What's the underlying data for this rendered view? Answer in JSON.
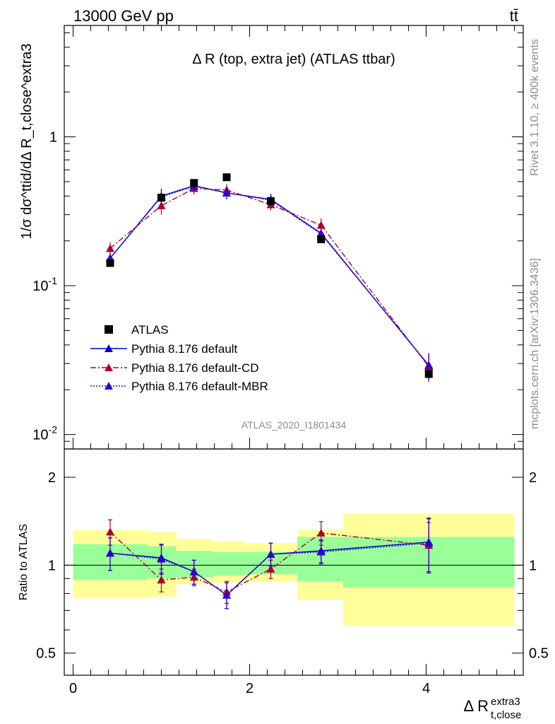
{
  "header": {
    "energy_label": "13000 GeV pp",
    "process_label": "tt̄"
  },
  "side_labels": {
    "rivet": "Rivet 3.1.10, ≥ 400k events",
    "mcplots": "mcplots.cern.ch [arXiv:1306.3436]"
  },
  "chart_data": {
    "type": "line",
    "title": "Δ R (top, extra jet) (ATLAS ttbar)",
    "analysis_id": "ATLAS_2020_I1801434",
    "xlabel": "Δ R",
    "xlabel_sup": "extra3",
    "xlabel_sub": "t,close",
    "ylabel_top": "1/σ dσ^ttid/dΔ R_t,close^extra3",
    "ylabel_bottom": "Ratio to ATLAS",
    "xlim": [
      -0.1,
      5.1
    ],
    "ylim_top": [
      0.008,
      5.6
    ],
    "yscale_top": "log",
    "ylim_bottom": [
      0.42,
      2.5
    ],
    "yscale_bottom": "log",
    "x_ticks": [
      "0",
      "2",
      "4"
    ],
    "y_ticks_top": [
      "10^-2",
      "10^-1",
      "1"
    ],
    "y_ticks_bottom": [
      "0.5",
      "1",
      "2"
    ],
    "legend": [
      {
        "label": "ATLAS",
        "style": "square-marker"
      },
      {
        "label": "Pythia 8.176 default",
        "style": "solid-triangle"
      },
      {
        "label": "Pythia 8.176 default-CD",
        "style": "dashdot-triangle"
      },
      {
        "label": "Pythia 8.176 default-MBR",
        "style": "dotted-triangle"
      }
    ],
    "legend_position": "lower-left",
    "data": {
      "name": "ATLAS",
      "x": [
        0.42,
        1.0,
        1.37,
        1.74,
        2.24,
        2.81,
        4.03
      ],
      "y": [
        0.142,
        0.39,
        0.49,
        0.535,
        0.37,
        0.205,
        0.0255
      ]
    },
    "bins": [
      0.0,
      0.84,
      1.17,
      1.58,
      1.94,
      2.54,
      3.06,
      5.0
    ],
    "bands": {
      "inner_hi": [
        1.18,
        1.16,
        1.12,
        1.11,
        1.11,
        1.25,
        1.25
      ],
      "inner_lo": [
        0.89,
        0.9,
        0.91,
        0.92,
        0.93,
        0.88,
        0.84
      ],
      "outer_hi": [
        1.32,
        1.3,
        1.23,
        1.21,
        1.19,
        1.32,
        1.5
      ],
      "outer_lo": [
        0.77,
        0.78,
        0.86,
        0.87,
        0.88,
        0.76,
        0.62
      ]
    },
    "series": [
      {
        "name": "Pythia 8.176 default",
        "color": "#0000cc",
        "dash": "",
        "x": [
          0.42,
          1.0,
          1.37,
          1.74,
          2.24,
          2.81,
          4.03
        ],
        "y": [
          0.153,
          0.4,
          0.47,
          0.42,
          0.38,
          0.225,
          0.029
        ],
        "yerr": [
          0.012,
          0.05,
          0.04,
          0.04,
          0.035,
          0.02,
          0.006
        ],
        "ratio": [
          1.1,
          1.06,
          0.95,
          0.79,
          1.09,
          1.12,
          1.2
        ],
        "ratio_err": [
          0.14,
          0.12,
          0.09,
          0.08,
          0.1,
          0.1,
          0.25
        ]
      },
      {
        "name": "Pythia 8.176 default-CD",
        "color": "#aa0033",
        "dash": "8,3,2,3",
        "x": [
          0.42,
          1.0,
          1.37,
          1.74,
          2.24,
          2.81,
          4.03
        ],
        "y": [
          0.178,
          0.345,
          0.45,
          0.44,
          0.35,
          0.255,
          0.0285
        ],
        "yerr": [
          0.018,
          0.045,
          0.04,
          0.04,
          0.03,
          0.028,
          0.006
        ],
        "ratio": [
          1.3,
          0.89,
          0.91,
          0.81,
          0.97,
          1.29,
          1.17
        ],
        "ratio_err": [
          0.13,
          0.08,
          0.06,
          0.07,
          0.07,
          0.12,
          0.23
        ]
      },
      {
        "name": "Pythia 8.176 default-MBR",
        "color": "#3300cc",
        "dash": "2,2",
        "x": [
          0.42,
          1.0,
          1.37,
          1.74,
          2.24,
          2.81,
          4.03
        ],
        "y": [
          0.153,
          0.395,
          0.465,
          0.42,
          0.375,
          0.222,
          0.0293
        ],
        "yerr": [
          0.012,
          0.05,
          0.04,
          0.04,
          0.035,
          0.02,
          0.006
        ],
        "ratio": [
          1.1,
          1.05,
          0.95,
          0.79,
          1.09,
          1.11,
          1.19
        ],
        "ratio_err": [
          0.14,
          0.12,
          0.09,
          0.08,
          0.1,
          0.1,
          0.25
        ]
      }
    ],
    "band_colors": {
      "inner": "#99ff99",
      "outer": "#ffff99"
    },
    "data_color": "#000000"
  }
}
